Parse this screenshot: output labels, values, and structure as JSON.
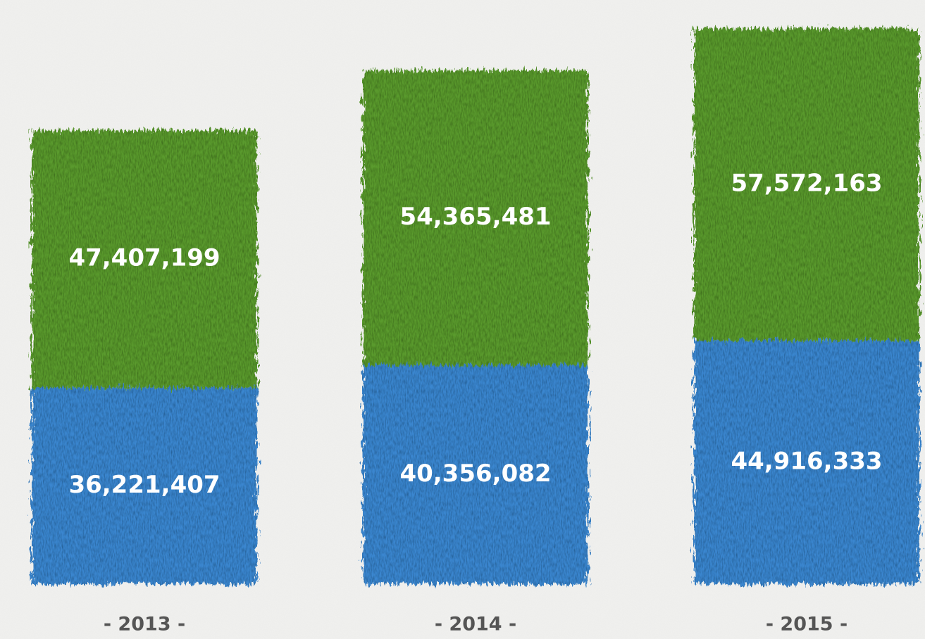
{
  "chart_data": {
    "type": "stacked-bar",
    "categories": [
      "- 2013 -",
      "- 2014 -",
      "- 2015 -"
    ],
    "series": [
      {
        "color": "#3a86cf",
        "values": [
          36221407,
          40356082,
          44916333
        ],
        "value_labels": [
          "36,221,407",
          "40,356,082",
          "44,916,333"
        ]
      },
      {
        "color": "#5a9a2e",
        "values": [
          47407199,
          54365481,
          57572163
        ],
        "value_labels": [
          "47,407,199",
          "54,365,481",
          "57,572,163"
        ]
      }
    ]
  }
}
